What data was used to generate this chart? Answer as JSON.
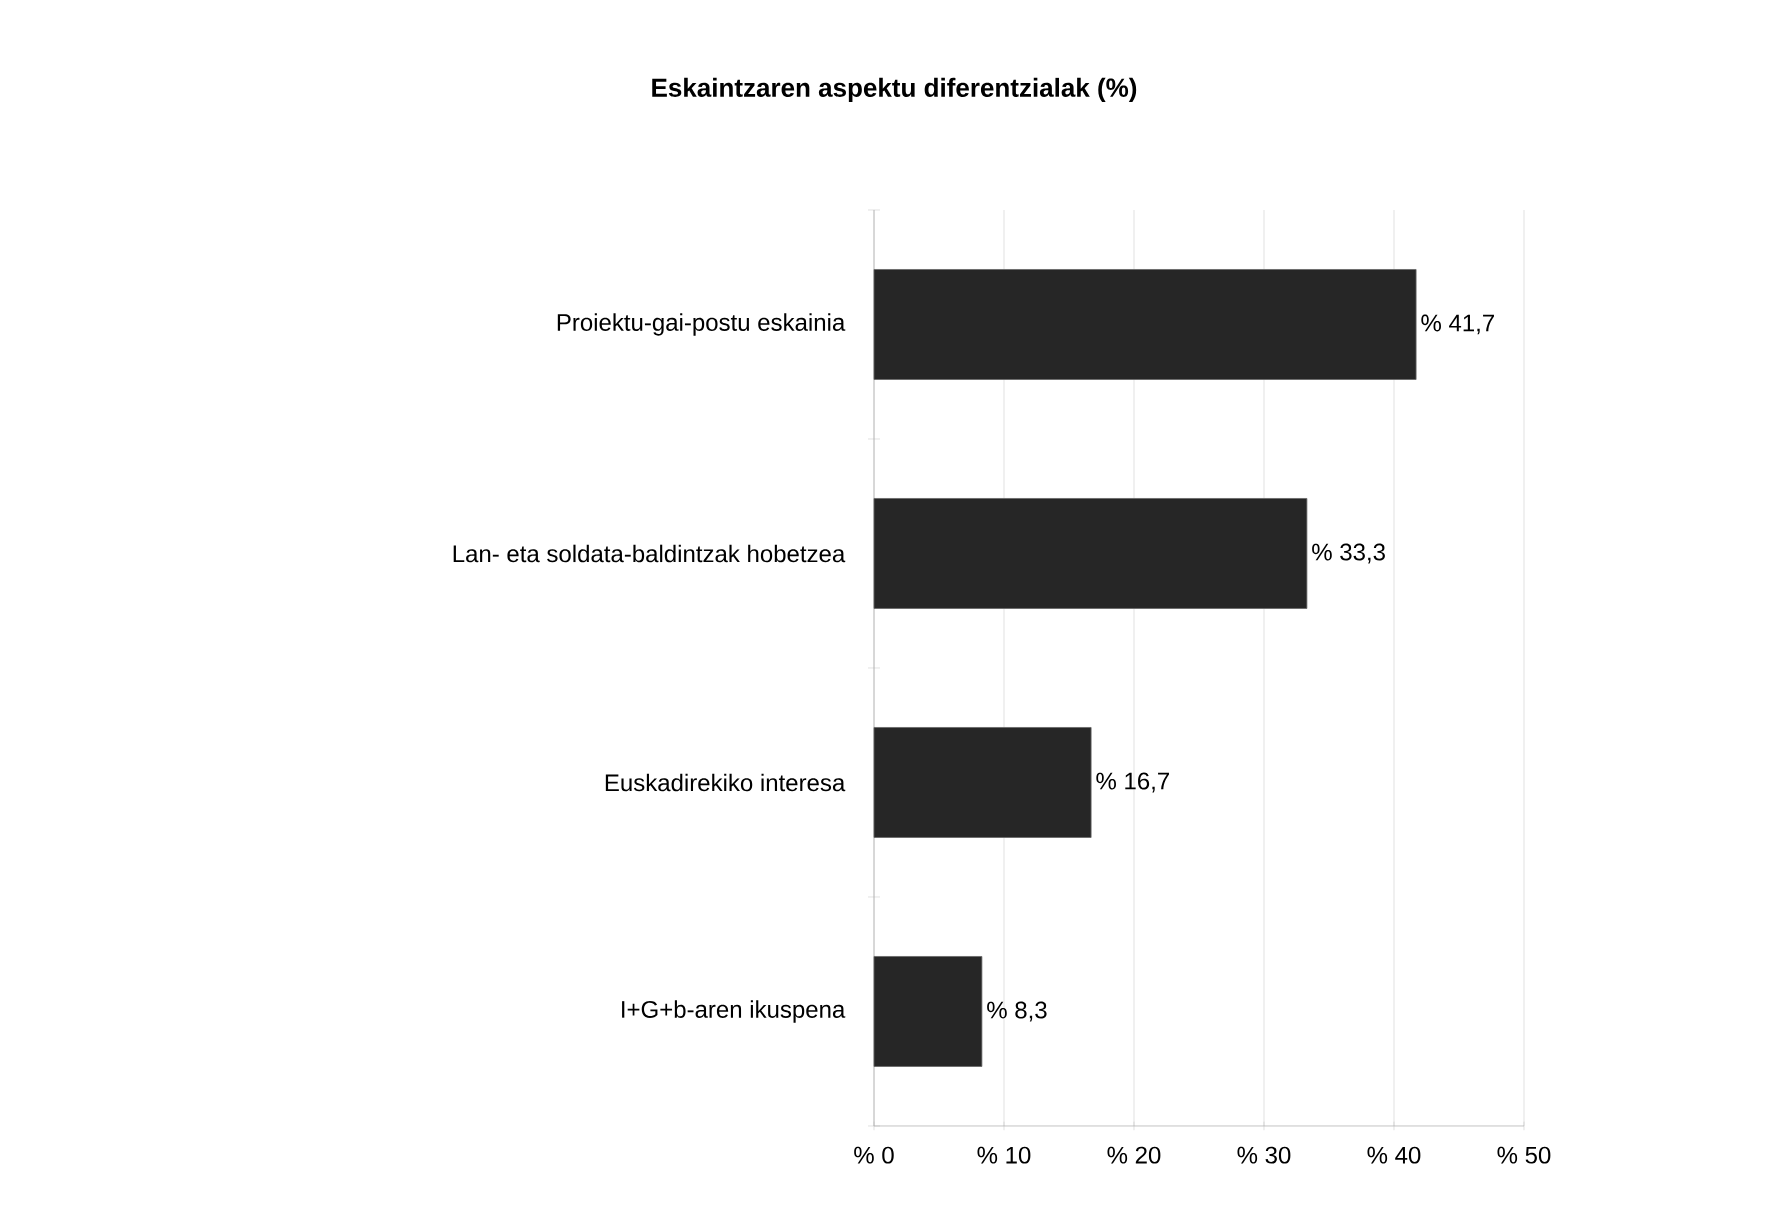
{
  "chart_data": {
    "type": "bar",
    "orientation": "horizontal",
    "title": "Eskaintzaren aspektu diferentzialak (%)",
    "categories": [
      "Proiektu-gai-postu eskainia",
      "Lan-  eta soldata-baldintzak hobetzea",
      "Euskadirekiko interesa",
      "I+G+b-aren ikuspena"
    ],
    "values": [
      41.7,
      33.3,
      16.7,
      8.3
    ],
    "value_labels": [
      "% 41,7",
      "% 33,3",
      "% 16,7",
      "% 8,3"
    ],
    "color": "#262626",
    "xlim": [
      0,
      50
    ],
    "xticks": [
      {
        "value": 0,
        "label": "% 0"
      },
      {
        "value": 10,
        "label": "% 10"
      },
      {
        "value": 20,
        "label": "% 20"
      },
      {
        "value": 30,
        "label": "% 30"
      },
      {
        "value": 40,
        "label": "% 40"
      },
      {
        "value": 50,
        "label": "% 50"
      }
    ],
    "grid": "x"
  }
}
